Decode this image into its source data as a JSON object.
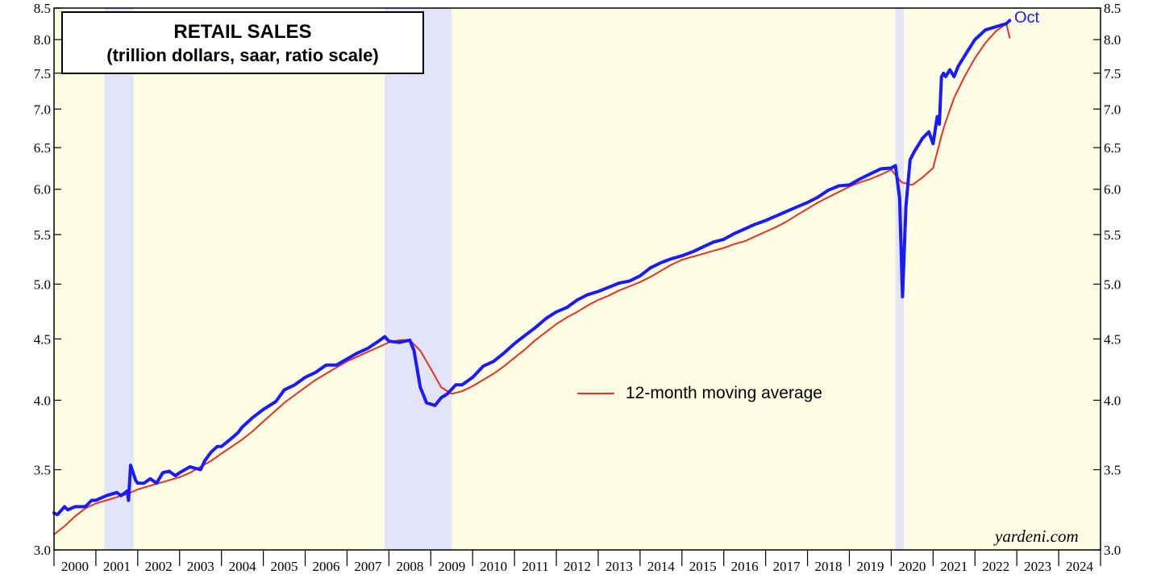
{
  "chart_data": {
    "type": "line",
    "title": "RETAIL SALES",
    "subtitle": "(trillion dollars, saar, ratio scale)",
    "y_scale": "log",
    "ylim": [
      3.0,
      8.5
    ],
    "y_ticks": [
      "3.0",
      "3.5",
      "4.0",
      "4.5",
      "5.0",
      "5.5",
      "6.0",
      "6.5",
      "7.0",
      "7.5",
      "8.0",
      "8.5"
    ],
    "x_range": [
      2000.0,
      2025.0
    ],
    "x_ticks": [
      "2000",
      "2001",
      "2002",
      "2003",
      "2004",
      "2005",
      "2006",
      "2007",
      "2008",
      "2009",
      "2010",
      "2011",
      "2012",
      "2013",
      "2014",
      "2015",
      "2016",
      "2017",
      "2018",
      "2019",
      "2020",
      "2021",
      "2022",
      "2023",
      "2024"
    ],
    "recessions": [
      [
        2001.2,
        2001.9
      ],
      [
        2007.9,
        2009.5
      ],
      [
        2020.1,
        2020.3
      ]
    ],
    "last_point_label": "Oct",
    "legend_label": "12-month moving average",
    "credit": "yardeni.com",
    "colors": {
      "plot_bg": "#fefee5",
      "recession": "#e4e4f8",
      "sales": "#1a1aff",
      "average": "#e8311f"
    },
    "series": [
      {
        "name": "Retail Sales",
        "x": [
          2000.0,
          2000.08,
          2000.25,
          2000.33,
          2000.5,
          2000.75,
          2000.9,
          2001.0,
          2001.25,
          2001.5,
          2001.6,
          2001.75,
          2001.78,
          2001.83,
          2001.95,
          2002.0,
          2002.15,
          2002.3,
          2002.45,
          2002.6,
          2002.75,
          2002.9,
          2003.0,
          2003.25,
          2003.5,
          2003.6,
          2003.75,
          2003.9,
          2004.0,
          2004.25,
          2004.4,
          2004.5,
          2004.75,
          2005.0,
          2005.3,
          2005.5,
          2005.75,
          2006.0,
          2006.25,
          2006.5,
          2006.75,
          2007.0,
          2007.25,
          2007.5,
          2007.75,
          2007.9,
          2008.0,
          2008.25,
          2008.5,
          2008.6,
          2008.75,
          2008.9,
          2009.0,
          2009.1,
          2009.25,
          2009.4,
          2009.6,
          2009.75,
          2010.0,
          2010.25,
          2010.5,
          2010.75,
          2011.0,
          2011.25,
          2011.5,
          2011.75,
          2012.0,
          2012.25,
          2012.5,
          2012.75,
          2013.0,
          2013.25,
          2013.5,
          2013.75,
          2014.0,
          2014.25,
          2014.5,
          2014.75,
          2015.0,
          2015.25,
          2015.5,
          2015.75,
          2016.0,
          2016.25,
          2016.5,
          2016.75,
          2017.0,
          2017.25,
          2017.5,
          2017.75,
          2018.0,
          2018.25,
          2018.5,
          2018.75,
          2019.0,
          2019.25,
          2019.5,
          2019.75,
          2020.0,
          2020.1,
          2020.2,
          2020.27,
          2020.35,
          2020.45,
          2020.55,
          2020.75,
          2020.9,
          2021.0,
          2021.1,
          2021.15,
          2021.2,
          2021.25,
          2021.3,
          2021.4,
          2021.5,
          2021.6,
          2021.75,
          2021.9,
          2022.0,
          2022.25,
          2022.5,
          2022.75,
          2022.83
        ],
        "values": [
          3.22,
          3.21,
          3.26,
          3.24,
          3.26,
          3.26,
          3.3,
          3.3,
          3.33,
          3.35,
          3.33,
          3.36,
          3.3,
          3.53,
          3.43,
          3.41,
          3.41,
          3.44,
          3.41,
          3.48,
          3.49,
          3.46,
          3.48,
          3.52,
          3.5,
          3.56,
          3.62,
          3.66,
          3.66,
          3.72,
          3.76,
          3.8,
          3.87,
          3.93,
          3.99,
          4.08,
          4.12,
          4.18,
          4.22,
          4.28,
          4.28,
          4.33,
          4.38,
          4.42,
          4.48,
          4.52,
          4.48,
          4.47,
          4.49,
          4.4,
          4.1,
          3.98,
          3.97,
          3.96,
          4.02,
          4.05,
          4.12,
          4.12,
          4.18,
          4.27,
          4.31,
          4.38,
          4.46,
          4.53,
          4.6,
          4.68,
          4.74,
          4.78,
          4.85,
          4.9,
          4.93,
          4.97,
          5.01,
          5.03,
          5.08,
          5.16,
          5.21,
          5.25,
          5.28,
          5.32,
          5.37,
          5.42,
          5.45,
          5.51,
          5.56,
          5.61,
          5.65,
          5.7,
          5.75,
          5.8,
          5.85,
          5.91,
          5.99,
          6.04,
          6.05,
          6.12,
          6.18,
          6.24,
          6.25,
          6.28,
          5.9,
          4.88,
          5.8,
          6.35,
          6.45,
          6.62,
          6.7,
          6.55,
          6.9,
          6.8,
          7.45,
          7.5,
          7.45,
          7.55,
          7.45,
          7.6,
          7.75,
          7.9,
          8.0,
          8.15,
          8.2,
          8.25,
          8.3
        ]
      },
      {
        "name": "12-month moving average",
        "x": [
          2000.0,
          2000.25,
          2000.5,
          2000.75,
          2001.0,
          2001.25,
          2001.5,
          2001.75,
          2002.0,
          2002.25,
          2002.5,
          2002.75,
          2003.0,
          2003.25,
          2003.5,
          2003.75,
          2004.0,
          2004.25,
          2004.5,
          2004.75,
          2005.0,
          2005.25,
          2005.5,
          2005.75,
          2006.0,
          2006.25,
          2006.5,
          2006.75,
          2007.0,
          2007.25,
          2007.5,
          2007.75,
          2008.0,
          2008.25,
          2008.5,
          2008.75,
          2009.0,
          2009.25,
          2009.5,
          2009.75,
          2010.0,
          2010.25,
          2010.5,
          2010.75,
          2011.0,
          2011.25,
          2011.5,
          2011.75,
          2012.0,
          2012.25,
          2012.5,
          2012.75,
          2013.0,
          2013.25,
          2013.5,
          2013.75,
          2014.0,
          2014.25,
          2014.5,
          2014.75,
          2015.0,
          2015.25,
          2015.5,
          2015.75,
          2016.0,
          2016.25,
          2016.5,
          2016.75,
          2017.0,
          2017.25,
          2017.5,
          2017.75,
          2018.0,
          2018.25,
          2018.5,
          2018.75,
          2019.0,
          2019.25,
          2019.5,
          2019.75,
          2020.0,
          2020.25,
          2020.5,
          2020.75,
          2021.0,
          2021.25,
          2021.5,
          2021.75,
          2022.0,
          2022.25,
          2022.5,
          2022.75,
          2022.83
        ],
        "values": [
          3.09,
          3.14,
          3.2,
          3.25,
          3.28,
          3.3,
          3.32,
          3.34,
          3.37,
          3.39,
          3.41,
          3.43,
          3.45,
          3.48,
          3.52,
          3.56,
          3.61,
          3.66,
          3.71,
          3.77,
          3.84,
          3.91,
          3.98,
          4.04,
          4.1,
          4.16,
          4.21,
          4.26,
          4.31,
          4.35,
          4.39,
          4.43,
          4.47,
          4.49,
          4.49,
          4.4,
          4.25,
          4.1,
          4.05,
          4.07,
          4.11,
          4.16,
          4.21,
          4.27,
          4.34,
          4.41,
          4.49,
          4.56,
          4.63,
          4.69,
          4.74,
          4.8,
          4.85,
          4.89,
          4.94,
          4.98,
          5.02,
          5.07,
          5.13,
          5.19,
          5.24,
          5.27,
          5.3,
          5.33,
          5.36,
          5.4,
          5.43,
          5.48,
          5.53,
          5.58,
          5.64,
          5.71,
          5.78,
          5.85,
          5.91,
          5.97,
          6.03,
          6.08,
          6.12,
          6.17,
          6.23,
          6.08,
          6.05,
          6.14,
          6.25,
          6.75,
          7.15,
          7.45,
          7.72,
          7.95,
          8.13,
          8.25,
          8.03
        ]
      }
    ]
  }
}
